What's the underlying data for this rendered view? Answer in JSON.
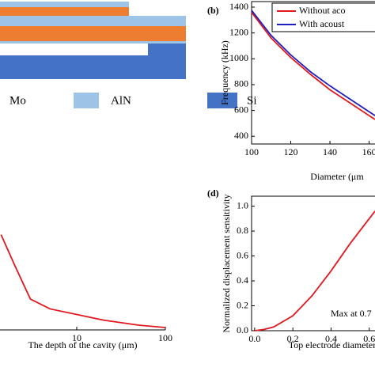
{
  "diagram": {
    "legend": [
      "Mo",
      "AlN",
      "Si"
    ]
  },
  "chart_data": [
    {
      "type": "line",
      "panel": "(b)",
      "ylabel": "Frequency (kHz)",
      "xlabel": "Diameter (μm",
      "x": [
        100,
        110,
        120,
        130,
        140,
        150,
        160,
        163
      ],
      "series": [
        {
          "name": "Without aco",
          "color": "#e0191f",
          "values": [
            1360,
            1160,
            1010,
            880,
            760,
            660,
            560,
            530
          ]
        },
        {
          "name": "With acoust",
          "color": "#1f1fbf",
          "values": [
            1375,
            1180,
            1030,
            900,
            790,
            690,
            590,
            560
          ]
        }
      ],
      "xlim": [
        100,
        163
      ],
      "ylim": [
        340,
        1443
      ],
      "xticks": [
        100,
        120,
        140,
        160
      ],
      "yticks": [
        400,
        600,
        800,
        1000,
        1200,
        1400
      ]
    },
    {
      "type": "line",
      "xscale": "log",
      "xlabel": "The depth of the cavity (μm)",
      "x": [
        1.4,
        2,
        3,
        5,
        10,
        20,
        50,
        100
      ],
      "series": [
        {
          "color": "#e0191f",
          "values": [
            0.68,
            0.46,
            0.22,
            0.15,
            0.11,
            0.07,
            0.034,
            0.017
          ]
        }
      ],
      "xlim": [
        1,
        100
      ],
      "ylim": [
        0,
        1
      ],
      "xticks": [
        10,
        100
      ]
    },
    {
      "type": "line",
      "panel": "(d)",
      "ylabel": "Normalized displacement sensitivity",
      "xlabel": "Top electrode diameter/D",
      "annotation": "Max at 0.7",
      "x": [
        0,
        0.05,
        0.1,
        0.2,
        0.3,
        0.4,
        0.5,
        0.6,
        0.63
      ],
      "series": [
        {
          "color": "#e0191f",
          "values": [
            0,
            0.01,
            0.03,
            0.12,
            0.28,
            0.48,
            0.7,
            0.9,
            0.96
          ]
        }
      ],
      "xlim": [
        -0.016,
        0.63
      ],
      "ylim": [
        0,
        1.08
      ],
      "xticks": [
        {
          "value": 0,
          "label": "0.0"
        },
        0.2,
        0.4,
        0.6
      ],
      "yticks": [
        {
          "value": 0,
          "label": "0.0"
        },
        0.2,
        0.4,
        0.6,
        0.8,
        {
          "value": 1,
          "label": "1.0"
        }
      ]
    }
  ]
}
